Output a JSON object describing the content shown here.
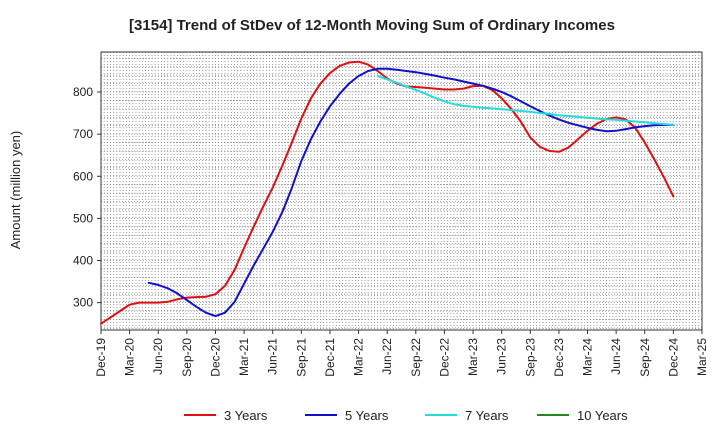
{
  "chart_data": {
    "type": "line",
    "title": "[3154]  Trend of StDev of 12-Month Moving Sum of Ordinary Incomes",
    "xlabel": "",
    "ylabel": "Amount (million yen)",
    "ylim": [
      235,
      895
    ],
    "yticks": [
      300,
      400,
      500,
      600,
      700,
      800
    ],
    "categories": [
      "Dec-19",
      "Mar-20",
      "Jun-20",
      "Sep-20",
      "Dec-20",
      "Mar-21",
      "Jun-21",
      "Sep-21",
      "Dec-21",
      "Mar-22",
      "Jun-22",
      "Sep-22",
      "Dec-22",
      "Mar-23",
      "Jun-23",
      "Sep-23",
      "Dec-23",
      "Mar-24",
      "Jun-24",
      "Sep-24",
      "Dec-24",
      "Mar-25"
    ],
    "grid": true,
    "legend_position": "bottom",
    "series": [
      {
        "name": "3 Years",
        "color": "#dd1111",
        "x": [
          0,
          1,
          2,
          3,
          4,
          5,
          6,
          7,
          8,
          9,
          10,
          11,
          12,
          13,
          14,
          15,
          16,
          17,
          18,
          19,
          20,
          21,
          22,
          23,
          24,
          25,
          26,
          27,
          28,
          29,
          30,
          31,
          32,
          33,
          34,
          35,
          36,
          37,
          38,
          39,
          40,
          41,
          42,
          43,
          44,
          45,
          46,
          47,
          48,
          49,
          50,
          51,
          52,
          53,
          54,
          55,
          56,
          57,
          58,
          59,
          60
        ],
        "values": [
          250,
          265,
          280,
          295,
          300,
          300,
          300,
          302,
          308,
          312,
          313,
          314,
          320,
          340,
          378,
          430,
          480,
          528,
          573,
          625,
          680,
          737,
          785,
          820,
          845,
          862,
          870,
          872,
          865,
          850,
          832,
          820,
          813,
          812,
          810,
          808,
          806,
          806,
          808,
          814,
          815,
          805,
          785,
          760,
          730,
          692,
          670,
          660,
          658,
          668,
          688,
          708,
          725,
          736,
          740,
          735,
          715,
          680,
          640,
          598,
          552
        ]
      },
      {
        "name": "5 Years",
        "color": "#1111cc",
        "x": [
          5,
          6,
          7,
          8,
          9,
          10,
          11,
          12,
          13,
          14,
          15,
          16,
          17,
          18,
          19,
          20,
          21,
          22,
          23,
          24,
          25,
          26,
          27,
          28,
          29,
          30,
          31,
          32,
          33,
          34,
          35,
          36,
          37,
          38,
          39,
          40,
          41,
          42,
          43,
          44,
          45,
          46,
          47,
          48,
          49,
          50,
          51,
          52,
          53,
          54,
          55,
          56,
          57,
          58,
          59,
          60
        ],
        "values": [
          347,
          342,
          334,
          322,
          306,
          290,
          276,
          268,
          276,
          302,
          345,
          388,
          428,
          468,
          515,
          572,
          636,
          688,
          730,
          766,
          795,
          820,
          838,
          850,
          855,
          855,
          853,
          850,
          847,
          843,
          839,
          834,
          830,
          825,
          820,
          815,
          808,
          800,
          790,
          778,
          766,
          755,
          744,
          735,
          727,
          721,
          715,
          710,
          707,
          708,
          712,
          716,
          719,
          721,
          722,
          722
        ]
      },
      {
        "name": "7 Years",
        "color": "#22dddd",
        "x": [
          29,
          30,
          31,
          32,
          33,
          34,
          35,
          36,
          37,
          38,
          39,
          40,
          41,
          42,
          43,
          44,
          45,
          46,
          47,
          48,
          49,
          50,
          51,
          52,
          53,
          54,
          55,
          56,
          57,
          58,
          59,
          60
        ],
        "values": [
          838,
          830,
          822,
          813,
          805,
          796,
          786,
          778,
          771,
          767,
          765,
          763,
          761,
          759,
          757,
          755,
          753,
          750,
          748,
          745,
          743,
          741,
          739,
          737,
          735,
          734,
          732,
          730,
          728,
          726,
          724,
          722
        ]
      },
      {
        "name": "10 Years",
        "color": "#228822",
        "x": [],
        "values": []
      }
    ]
  }
}
